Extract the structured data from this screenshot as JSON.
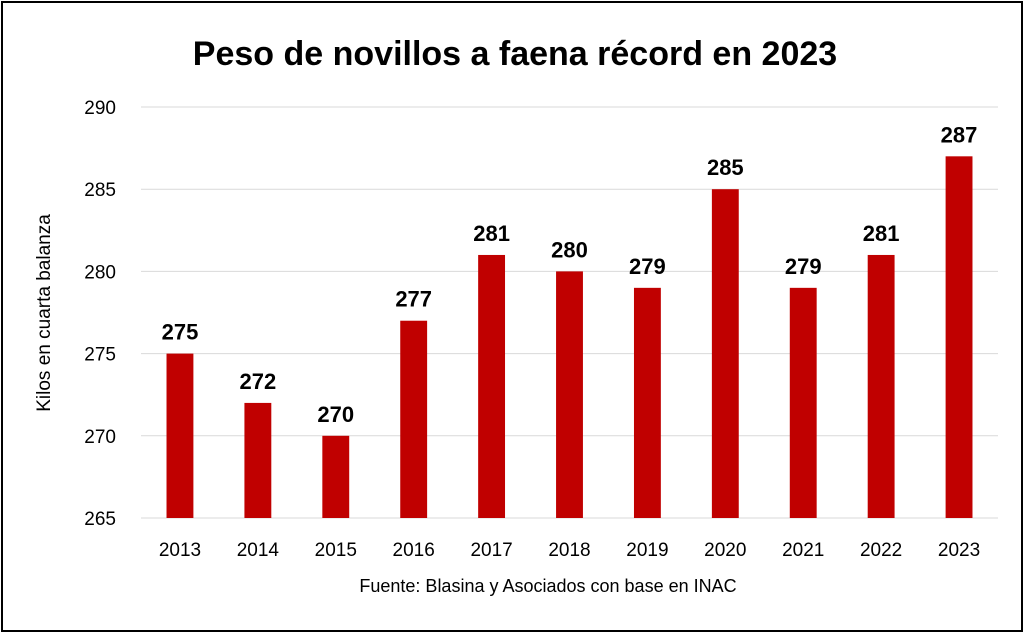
{
  "chart_data": {
    "type": "bar",
    "title": "Peso de novillos a faena récord en 2023",
    "xlabel": "",
    "ylabel": "Kilos en cuarta balanza",
    "ylim": [
      265,
      290
    ],
    "yticks": [
      265,
      270,
      275,
      280,
      285,
      290
    ],
    "categories": [
      "2013",
      "2014",
      "2015",
      "2016",
      "2017",
      "2018",
      "2019",
      "2020",
      "2021",
      "2022",
      "2023"
    ],
    "values": [
      275,
      272,
      270,
      277,
      281,
      280,
      279,
      285,
      279,
      281,
      287
    ],
    "grid": true,
    "bar_color": "#c00000",
    "source": "Fuente: Blasina y Asociados con base en INAC"
  }
}
